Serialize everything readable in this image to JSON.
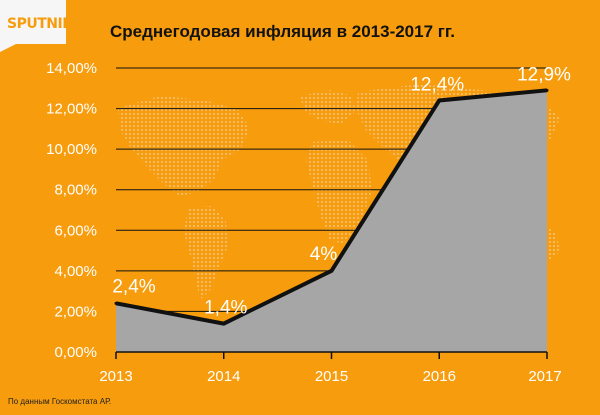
{
  "brand": {
    "logo_text": "SPUTNIK"
  },
  "header": {
    "title": "Среднегодовая инфляция в 2013-2017 гг."
  },
  "footer": {
    "source": "По данным Госкомстата АР."
  },
  "colors": {
    "background": "#f79c0c",
    "area_fill": "#a6a6a6",
    "line": "#111111",
    "map": "#f3c27d",
    "labels": "#ffffff"
  },
  "chart_data": {
    "type": "area",
    "title": "Среднегодовая инфляция в 2013-2017 гг.",
    "x": [
      "2013",
      "2014",
      "2015",
      "2016",
      "2017"
    ],
    "values": [
      2.4,
      1.4,
      4,
      12.4,
      12.9
    ],
    "data_labels": [
      "2,4%",
      "1,4%",
      "4%",
      "12,4%",
      "12,9%"
    ],
    "yticks": [
      "0,00%",
      "2,00%",
      "4,00%",
      "6,00%",
      "8,00%",
      "10,00%",
      "12,00%",
      "14,00%"
    ],
    "ylim": [
      0,
      14
    ],
    "grid": true,
    "legend": "none"
  }
}
